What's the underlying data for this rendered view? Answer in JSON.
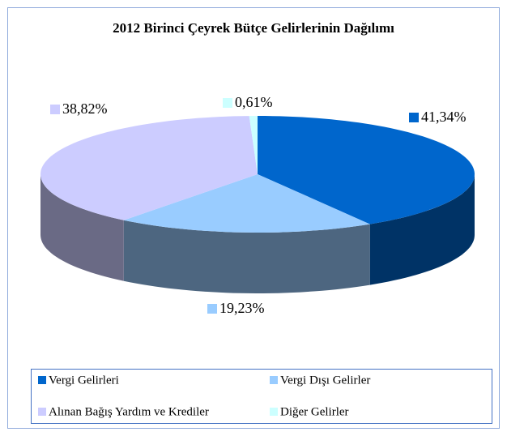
{
  "chart_data": {
    "type": "pie3d",
    "title": "2012  Birinci Çeyrek Bütçe Gelirlerinin Dağılımı",
    "categories": [
      "Vergi Gelirleri",
      "Vergi Dışı Gelirler",
      "Alınan Bağış Yardım ve Krediler",
      "Diğer Gelirler"
    ],
    "values": [
      41.34,
      19.23,
      38.82,
      0.61
    ],
    "value_labels": [
      "41,34%",
      "19,23%",
      "38,82%",
      "0,61%"
    ],
    "colors": [
      "#0066CC",
      "#99CCFF",
      "#CCCCFF",
      "#CCFFFF"
    ],
    "legend": "bottom"
  }
}
